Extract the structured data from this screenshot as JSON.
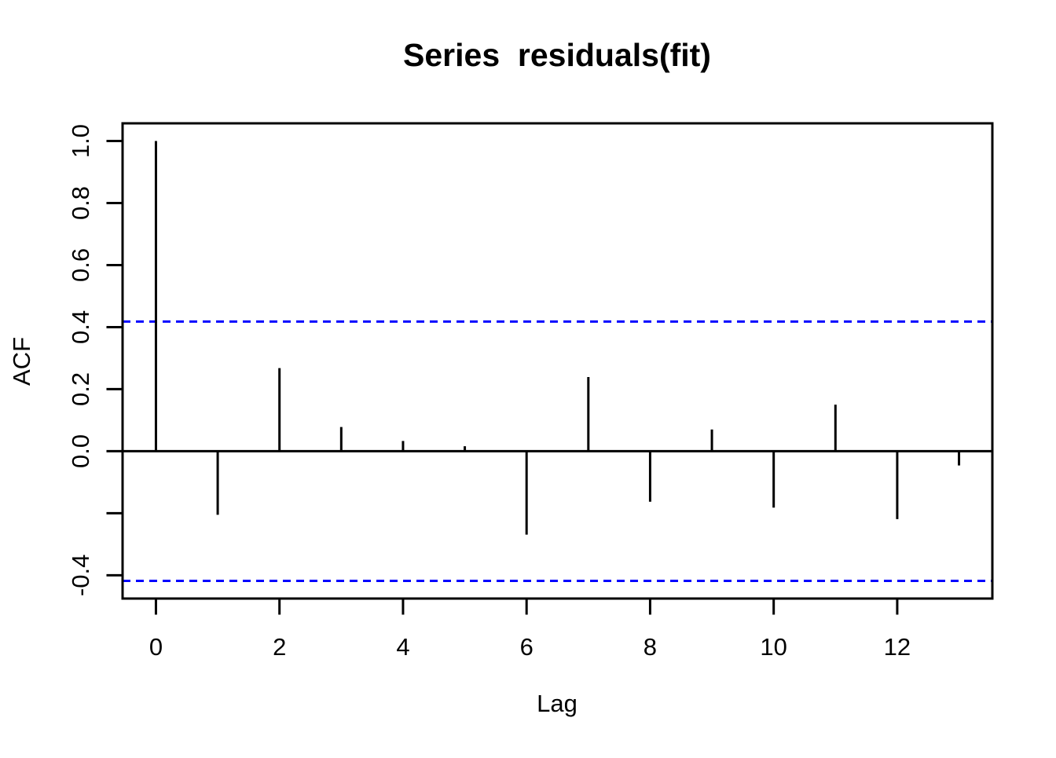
{
  "chart_data": {
    "type": "bar",
    "subtype": "acf-spike-plot",
    "title": "Series  residuals(fit)",
    "xlabel": "Lag",
    "ylabel": "ACF",
    "x": [
      0,
      1,
      2,
      3,
      4,
      5,
      6,
      7,
      8,
      9,
      10,
      11,
      12,
      13
    ],
    "values": [
      1.0,
      -0.205,
      0.268,
      0.078,
      0.033,
      0.016,
      -0.269,
      0.239,
      -0.163,
      0.07,
      -0.182,
      0.15,
      -0.219,
      -0.046
    ],
    "confidence_bounds": [
      0.418,
      -0.418
    ],
    "confidence_line_style": "dashed",
    "xlim": [
      -0.54,
      13.54
    ],
    "ylim": [
      -0.475,
      1.057
    ],
    "x_ticks": [
      {
        "value": 0,
        "label": "0"
      },
      {
        "value": 2,
        "label": "2"
      },
      {
        "value": 4,
        "label": "4"
      },
      {
        "value": 6,
        "label": "6"
      },
      {
        "value": 8,
        "label": "8"
      },
      {
        "value": 10,
        "label": "10"
      },
      {
        "value": 12,
        "label": "12"
      }
    ],
    "y_ticks": [
      {
        "value": 1.0,
        "label": "1.0"
      },
      {
        "value": 0.8,
        "label": "0.8"
      },
      {
        "value": 0.6,
        "label": "0.6"
      },
      {
        "value": 0.4,
        "label": "0.4"
      },
      {
        "value": 0.2,
        "label": "0.2"
      },
      {
        "value": 0.0,
        "label": "0.0"
      },
      {
        "value": -0.2,
        "label": ""
      },
      {
        "value": -0.4,
        "label": "-0.4"
      }
    ],
    "grid": false,
    "legend": null,
    "colors": {
      "spike": "#000000",
      "axis": "#000000",
      "confidence_line": "#0000ff",
      "background": "#ffffff"
    }
  }
}
